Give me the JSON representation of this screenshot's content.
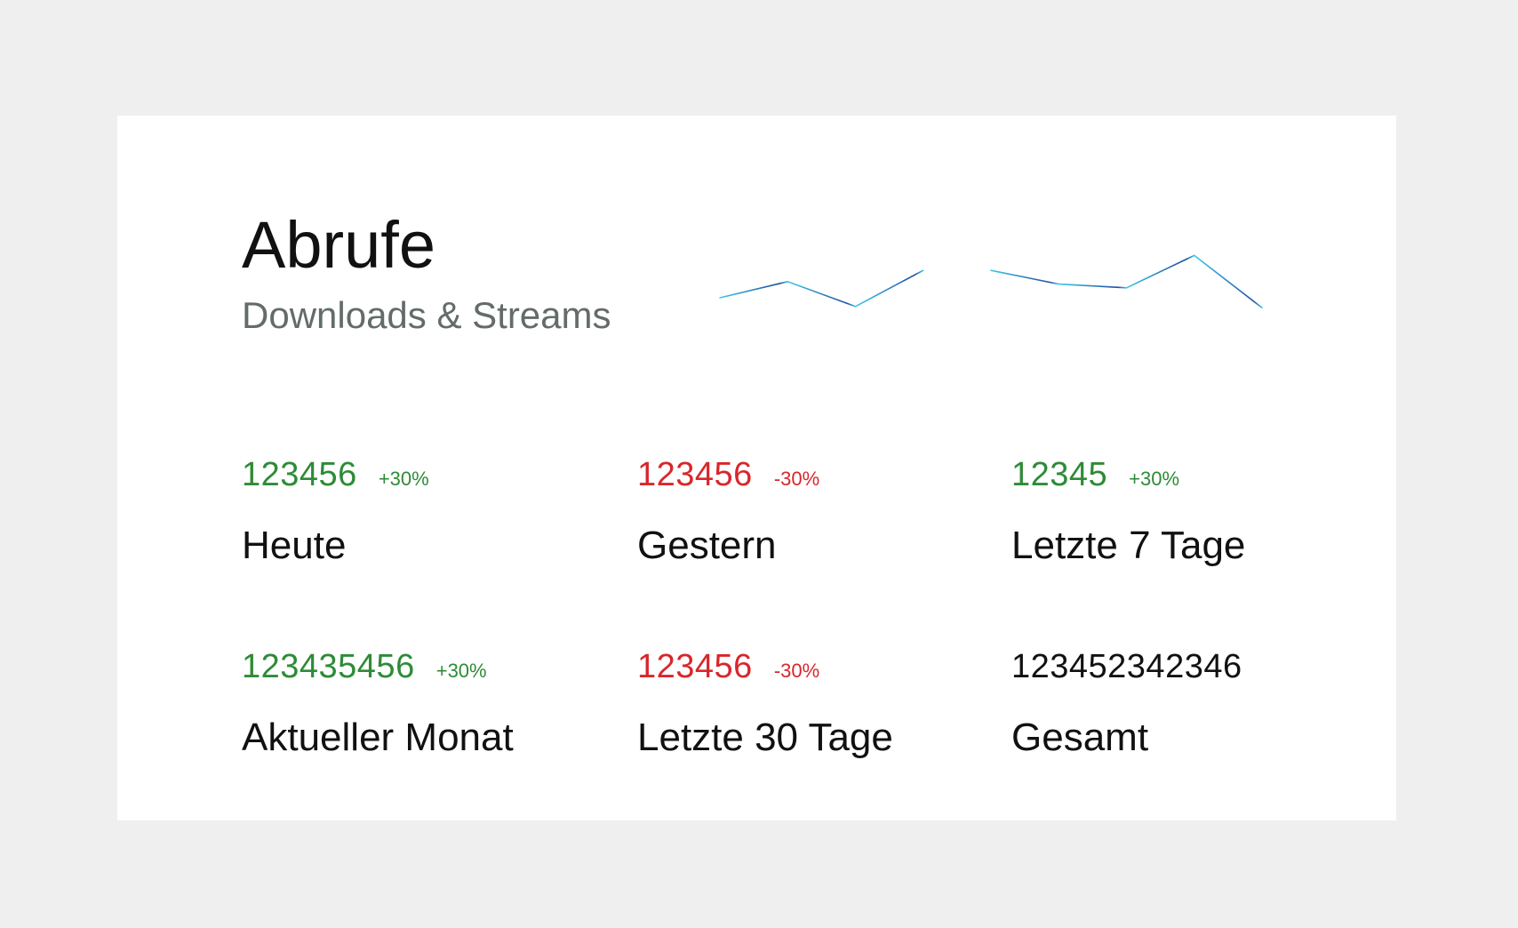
{
  "header": {
    "title": "Abrufe",
    "subtitle": "Downloads & Streams"
  },
  "stats": [
    {
      "value": "123456",
      "change": "+30%",
      "label": "Heute",
      "trend": "up"
    },
    {
      "value": "123456",
      "change": "-30%",
      "label": "Gestern",
      "trend": "down"
    },
    {
      "value": "12345",
      "change": "+30%",
      "label": "Letzte 7 Tage",
      "trend": "up"
    },
    {
      "value": "123435456",
      "change": "+30%",
      "label": "Aktueller Monat",
      "trend": "up"
    },
    {
      "value": "123456",
      "change": "-30%",
      "label": "Letzte 30 Tage",
      "trend": "down"
    },
    {
      "value": "123452342346",
      "change": "",
      "label": "Gesamt",
      "trend": "neutral"
    }
  ],
  "colors": {
    "up": "#2e8b37",
    "down": "#d9262b",
    "neutral": "#111111",
    "sparkline_start": "#3ec8e6",
    "sparkline_peak": "#1f4fa3"
  },
  "chart_data": {
    "type": "line",
    "x": [
      1,
      2,
      3,
      4,
      5,
      6,
      7,
      8,
      9
    ],
    "values": [
      45,
      58,
      38,
      67,
      67,
      56,
      53,
      79,
      37
    ],
    "ylim": [
      0,
      100
    ],
    "grid": false,
    "axes": false
  }
}
